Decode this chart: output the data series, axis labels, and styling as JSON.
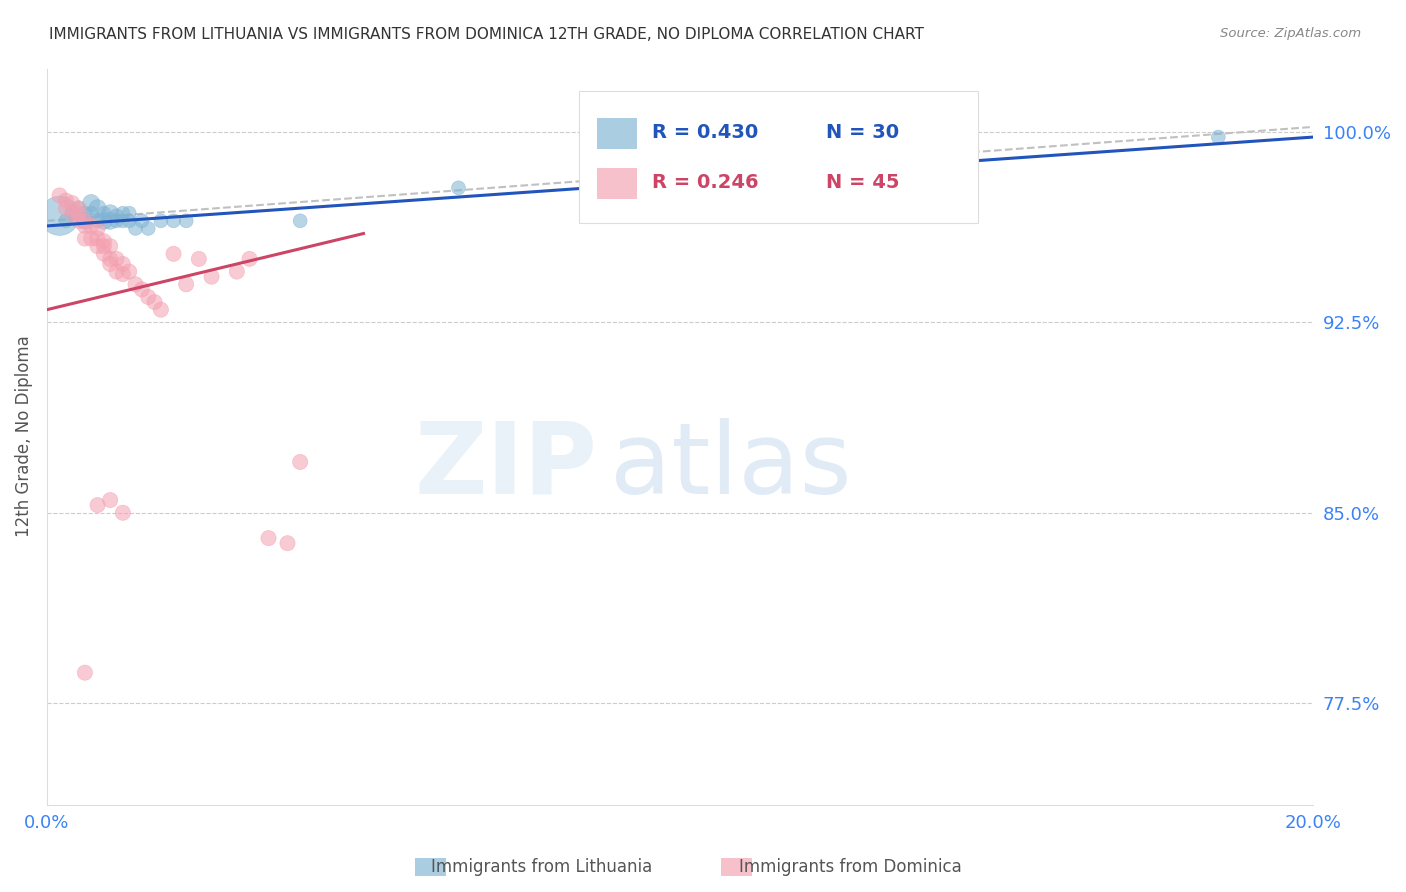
{
  "title": "IMMIGRANTS FROM LITHUANIA VS IMMIGRANTS FROM DOMINICA 12TH GRADE, NO DIPLOMA CORRELATION CHART",
  "source": "Source: ZipAtlas.com",
  "ylabel": "12th Grade, No Diploma",
  "xlim": [
    0.0,
    0.2
  ],
  "ylim": [
    0.735,
    1.025
  ],
  "yticks": [
    0.775,
    0.85,
    0.925,
    1.0
  ],
  "ytick_labels": [
    "77.5%",
    "85.0%",
    "92.5%",
    "100.0%"
  ],
  "legend_r_blue": "R = 0.430",
  "legend_n_blue": "N = 30",
  "legend_r_pink": "R = 0.246",
  "legend_n_pink": "N = 45",
  "blue_color": "#7FB3D3",
  "pink_color": "#F4A0B0",
  "blue_line_color": "#2255BB",
  "pink_line_color": "#CC4466",
  "dashed_color": "#C0C0C0",
  "axis_color": "#3B82F6",
  "title_color": "#333333",
  "blue_scatter_x": [
    0.002,
    0.003,
    0.004,
    0.005,
    0.006,
    0.006,
    0.007,
    0.007,
    0.008,
    0.008,
    0.009,
    0.009,
    0.01,
    0.01,
    0.011,
    0.011,
    0.012,
    0.012,
    0.013,
    0.013,
    0.014,
    0.015,
    0.016,
    0.018,
    0.02,
    0.022,
    0.04,
    0.065,
    0.12,
    0.185
  ],
  "blue_scatter_y": [
    0.967,
    0.965,
    0.968,
    0.97,
    0.965,
    0.968,
    0.972,
    0.968,
    0.97,
    0.965,
    0.965,
    0.968,
    0.965,
    0.968,
    0.965,
    0.967,
    0.965,
    0.968,
    0.968,
    0.965,
    0.962,
    0.965,
    0.962,
    0.965,
    0.965,
    0.965,
    0.965,
    0.978,
    0.983,
    0.998
  ],
  "blue_scatter_sizes": [
    150,
    100,
    100,
    100,
    150,
    100,
    150,
    100,
    150,
    100,
    150,
    100,
    150,
    150,
    100,
    100,
    100,
    100,
    100,
    100,
    100,
    100,
    100,
    100,
    100,
    100,
    100,
    100,
    100,
    100
  ],
  "blue_large_dot_idx": 0,
  "pink_scatter_x": [
    0.002,
    0.003,
    0.003,
    0.004,
    0.004,
    0.005,
    0.005,
    0.005,
    0.006,
    0.006,
    0.006,
    0.007,
    0.007,
    0.008,
    0.008,
    0.008,
    0.009,
    0.009,
    0.009,
    0.01,
    0.01,
    0.01,
    0.011,
    0.011,
    0.012,
    0.012,
    0.013,
    0.014,
    0.015,
    0.016,
    0.017,
    0.018,
    0.02,
    0.022,
    0.024,
    0.026,
    0.03,
    0.032,
    0.04,
    0.008,
    0.01,
    0.012,
    0.035,
    0.038,
    0.006
  ],
  "pink_scatter_y": [
    0.975,
    0.973,
    0.97,
    0.972,
    0.968,
    0.97,
    0.968,
    0.965,
    0.965,
    0.963,
    0.958,
    0.963,
    0.958,
    0.962,
    0.958,
    0.955,
    0.957,
    0.955,
    0.952,
    0.955,
    0.95,
    0.948,
    0.95,
    0.945,
    0.948,
    0.944,
    0.945,
    0.94,
    0.938,
    0.935,
    0.933,
    0.93,
    0.952,
    0.94,
    0.95,
    0.943,
    0.945,
    0.95,
    0.87,
    0.853,
    0.855,
    0.85,
    0.84,
    0.838,
    0.787
  ],
  "pink_scatter_sizes": [
    100,
    100,
    100,
    100,
    100,
    100,
    100,
    100,
    100,
    100,
    100,
    100,
    100,
    100,
    100,
    100,
    100,
    100,
    100,
    100,
    100,
    100,
    100,
    100,
    100,
    100,
    100,
    100,
    100,
    100,
    100,
    100,
    100,
    100,
    100,
    100,
    100,
    100,
    100,
    100,
    100,
    100,
    100,
    100,
    100
  ],
  "blue_trendline_x": [
    0.0,
    0.2
  ],
  "blue_trendline_y": [
    0.963,
    0.998
  ],
  "pink_trendline_x": [
    0.0,
    0.05
  ],
  "pink_trendline_y": [
    0.93,
    0.96
  ],
  "dashed_trendline_x": [
    0.0,
    0.2
  ],
  "dashed_trendline_y": [
    0.965,
    1.002
  ]
}
